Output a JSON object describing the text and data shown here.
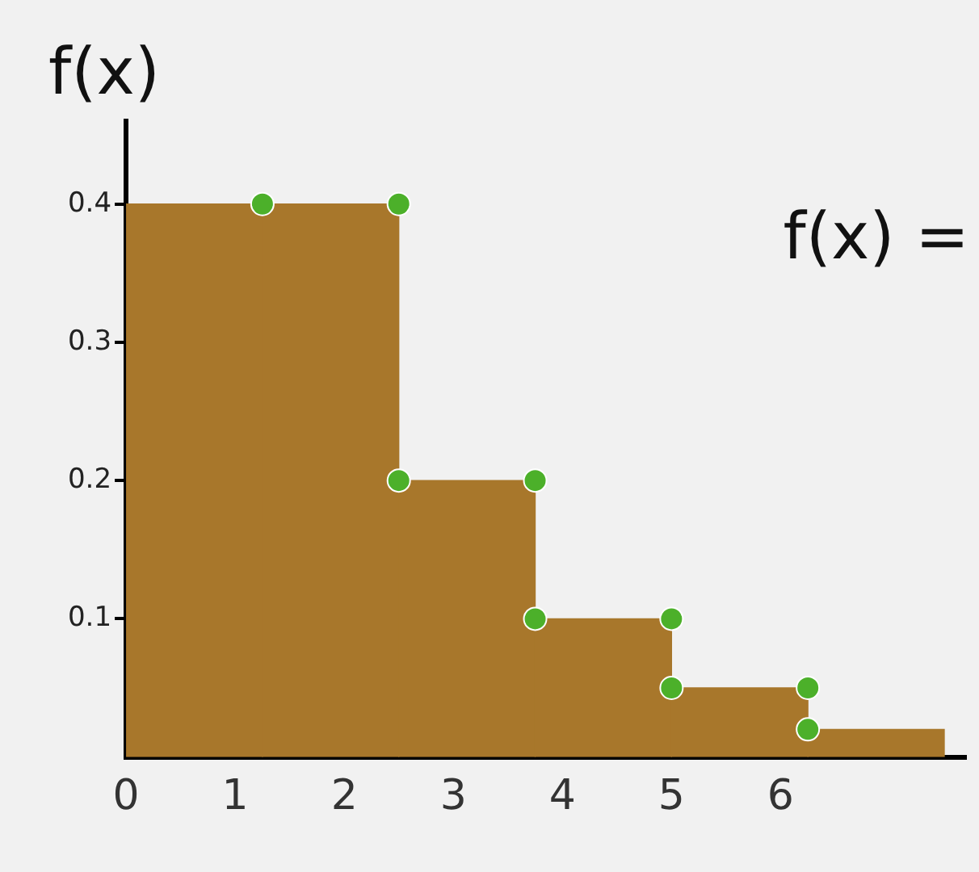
{
  "chart_data": {
    "type": "histogram",
    "ylabel": "f(x)",
    "annotations": [
      "f(x) ="
    ],
    "bins": [
      0,
      1.25,
      2.5,
      3.75,
      5,
      6.25,
      7.5
    ],
    "series": [
      {
        "color": "#a8772b",
        "values": [
          0.4,
          0.4,
          0.2,
          0.1,
          0.05,
          0.02
        ]
      },
      {
        "type": "scatter",
        "color": "#4cb02a",
        "x": [
          1.25,
          2.5,
          2.5,
          3.75,
          3.75,
          5,
          5,
          6.25,
          6.25
        ],
        "values": [
          0.4,
          0.4,
          0.2,
          0.2,
          0.1,
          0.1,
          0.05,
          0.05,
          0.02
        ]
      }
    ],
    "marker": "circle",
    "xlim": [
      0,
      7.7
    ],
    "xticks": [
      0,
      1,
      2,
      3,
      4,
      5,
      6
    ],
    "ylim": [
      0,
      0.46
    ],
    "yticks": [
      0.1,
      0.2,
      0.3,
      0.4
    ]
  }
}
